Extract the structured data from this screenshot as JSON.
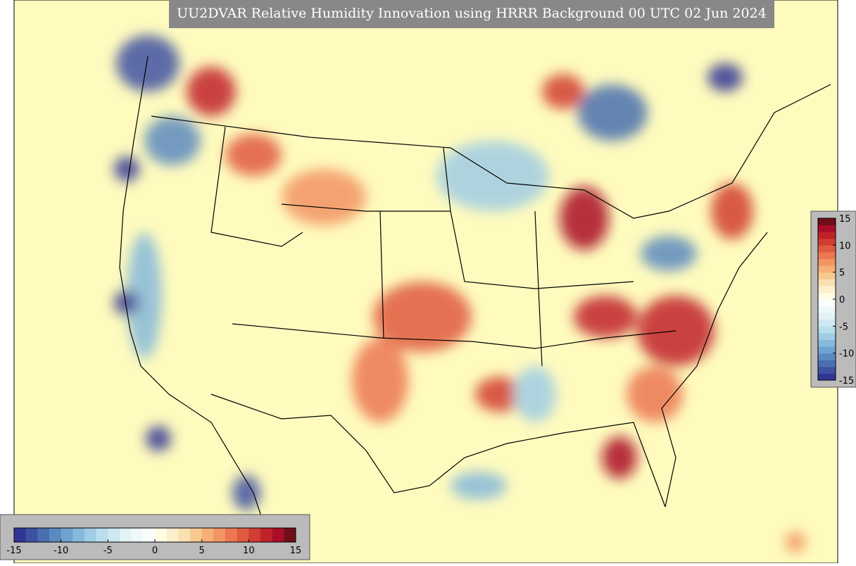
{
  "title": "UU2DVAR Relative Humidity Innovation using HRRR Background 00 UTC 02 Jun 2024",
  "colorbars": [
    {
      "orientation": "vertical",
      "range": [
        -15,
        15
      ],
      "ticks": [
        15,
        10,
        5,
        0,
        -5,
        -10,
        -15
      ]
    },
    {
      "orientation": "horizontal",
      "range": [
        -15,
        15
      ],
      "ticks": [
        -15,
        -10,
        -5,
        0,
        5,
        10,
        15
      ]
    }
  ],
  "colors": [
    "#313695",
    "#3f51a3",
    "#4a6fb0",
    "#5b8ac0",
    "#6fa3cf",
    "#86b9db",
    "#a0cde5",
    "#b9dfed",
    "#cfe9f2",
    "#e2f2f6",
    "#eff8f8",
    "#fafdfb",
    "#fffbe5",
    "#fcefcc",
    "#f9e0b0",
    "#f7c98f",
    "#f6b077",
    "#f39463",
    "#ec7752",
    "#e05a41",
    "#d13d33",
    "#c12129",
    "#aa0e27",
    "#6e0f1a"
  ]
}
